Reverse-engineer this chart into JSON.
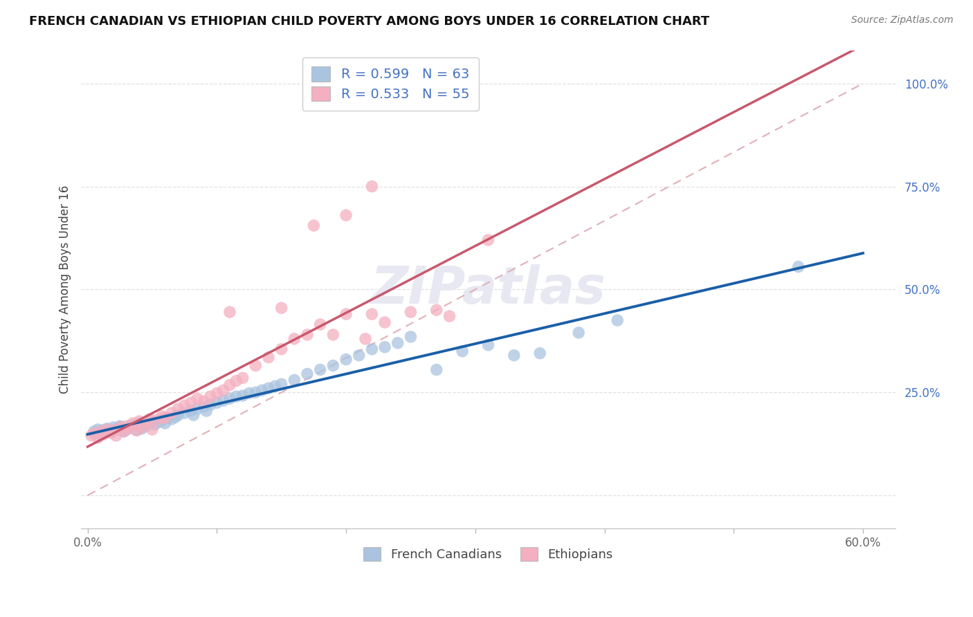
{
  "title": "FRENCH CANADIAN VS ETHIOPIAN CHILD POVERTY AMONG BOYS UNDER 16 CORRELATION CHART",
  "source": "Source: ZipAtlas.com",
  "ylabel": "Child Poverty Among Boys Under 16",
  "xlim": [
    -0.005,
    0.625
  ],
  "ylim": [
    -0.08,
    1.08
  ],
  "xtick_positions": [
    0.0,
    0.1,
    0.2,
    0.3,
    0.4,
    0.5,
    0.6
  ],
  "xticklabels": [
    "0.0%",
    "",
    "",
    "",
    "",
    "",
    "60.0%"
  ],
  "ytick_positions": [
    0.0,
    0.25,
    0.5,
    0.75,
    1.0
  ],
  "yticklabels": [
    "",
    "25.0%",
    "50.0%",
    "75.0%",
    "100.0%"
  ],
  "legend_blue_label": "French Canadians",
  "legend_pink_label": "Ethiopians",
  "R_blue": "0.599",
  "N_blue": "63",
  "R_pink": "0.533",
  "N_pink": "55",
  "blue_scatter_color": "#aac4e0",
  "pink_scatter_color": "#f4afc0",
  "blue_line_color": "#1a5fa8",
  "pink_line_color": "#c8586c",
  "ref_line_color": "#e0b0b8",
  "label_color": "#4472c4",
  "watermark_text": "ZIPatlas",
  "watermark_color": "#e8e8f2",
  "blue_x": [
    0.005,
    0.008,
    0.01,
    0.012,
    0.015,
    0.018,
    0.02,
    0.022,
    0.025,
    0.028,
    0.03,
    0.032,
    0.035,
    0.038,
    0.04,
    0.042,
    0.045,
    0.048,
    0.05,
    0.052,
    0.055,
    0.058,
    0.06,
    0.062,
    0.065,
    0.068,
    0.07,
    0.075,
    0.08,
    0.082,
    0.085,
    0.09,
    0.092,
    0.095,
    0.1,
    0.105,
    0.11,
    0.115,
    0.12,
    0.125,
    0.13,
    0.135,
    0.14,
    0.145,
    0.15,
    0.16,
    0.17,
    0.18,
    0.19,
    0.2,
    0.21,
    0.22,
    0.23,
    0.24,
    0.25,
    0.27,
    0.29,
    0.31,
    0.33,
    0.35,
    0.38,
    0.41,
    0.55
  ],
  "blue_y": [
    0.155,
    0.16,
    0.148,
    0.158,
    0.162,
    0.155,
    0.165,
    0.16,
    0.168,
    0.155,
    0.16,
    0.165,
    0.17,
    0.158,
    0.175,
    0.162,
    0.168,
    0.175,
    0.18,
    0.172,
    0.178,
    0.182,
    0.175,
    0.188,
    0.185,
    0.19,
    0.195,
    0.2,
    0.205,
    0.195,
    0.21,
    0.215,
    0.205,
    0.22,
    0.225,
    0.23,
    0.235,
    0.24,
    0.242,
    0.248,
    0.25,
    0.255,
    0.26,
    0.265,
    0.27,
    0.28,
    0.295,
    0.305,
    0.315,
    0.33,
    0.34,
    0.355,
    0.36,
    0.37,
    0.385,
    0.305,
    0.35,
    0.365,
    0.34,
    0.345,
    0.395,
    0.425,
    0.555
  ],
  "pink_x": [
    0.003,
    0.005,
    0.008,
    0.01,
    0.012,
    0.015,
    0.018,
    0.02,
    0.022,
    0.025,
    0.028,
    0.03,
    0.032,
    0.035,
    0.038,
    0.04,
    0.042,
    0.045,
    0.048,
    0.05,
    0.055,
    0.058,
    0.06,
    0.065,
    0.07,
    0.075,
    0.08,
    0.085,
    0.09,
    0.095,
    0.1,
    0.105,
    0.11,
    0.115,
    0.12,
    0.13,
    0.14,
    0.15,
    0.16,
    0.17,
    0.18,
    0.19,
    0.2,
    0.215,
    0.22,
    0.23,
    0.25,
    0.27,
    0.28,
    0.31,
    0.11,
    0.15,
    0.175,
    0.2,
    0.22
  ],
  "pink_y": [
    0.145,
    0.15,
    0.14,
    0.155,
    0.148,
    0.16,
    0.152,
    0.158,
    0.145,
    0.165,
    0.155,
    0.168,
    0.162,
    0.175,
    0.158,
    0.18,
    0.165,
    0.178,
    0.185,
    0.16,
    0.185,
    0.192,
    0.188,
    0.2,
    0.21,
    0.218,
    0.225,
    0.235,
    0.228,
    0.24,
    0.248,
    0.255,
    0.268,
    0.278,
    0.285,
    0.315,
    0.335,
    0.355,
    0.38,
    0.39,
    0.415,
    0.39,
    0.44,
    0.38,
    0.44,
    0.42,
    0.445,
    0.45,
    0.435,
    0.62,
    0.445,
    0.455,
    0.655,
    0.68,
    0.75
  ]
}
